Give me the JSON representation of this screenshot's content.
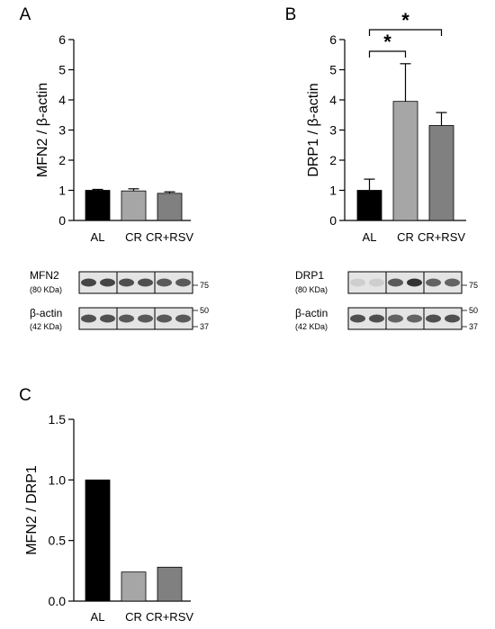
{
  "chart_data": [
    {
      "panel": "A",
      "type": "bar",
      "ylabel": "MFN2 / β-actin",
      "ylim": [
        0,
        6
      ],
      "yticks": [
        "0",
        "1",
        "2",
        "3",
        "4",
        "5",
        "6"
      ],
      "categories": [
        "AL",
        "CR",
        "CR+RSV"
      ],
      "values": [
        1.0,
        0.98,
        0.9
      ],
      "errors": [
        0.03,
        0.07,
        0.05
      ],
      "colors": [
        "#000000",
        "#a6a6a6",
        "#808080"
      ],
      "significance": [],
      "blots": [
        {
          "name": "MFN2",
          "kda": "(80 KDa)",
          "markers": [
            "75"
          ]
        },
        {
          "name": "β-actin",
          "kda": "(42 KDa)",
          "markers": [
            "50",
            "37"
          ]
        }
      ]
    },
    {
      "panel": "B",
      "type": "bar",
      "ylabel": "DRP1 / β-actin",
      "ylim": [
        0,
        6
      ],
      "yticks": [
        "0",
        "1",
        "2",
        "3",
        "4",
        "5",
        "6"
      ],
      "categories": [
        "AL",
        "CR",
        "CR+RSV"
      ],
      "values": [
        1.0,
        3.95,
        3.15
      ],
      "errors": [
        0.37,
        1.25,
        0.43
      ],
      "colors": [
        "#000000",
        "#a6a6a6",
        "#808080"
      ],
      "significance": [
        {
          "from": 0,
          "to": 1,
          "label": "*"
        },
        {
          "from": 0,
          "to": 2,
          "label": "*"
        }
      ],
      "blots": [
        {
          "name": "DRP1",
          "kda": "(80 KDa)",
          "markers": [
            "75"
          ]
        },
        {
          "name": "β-actin",
          "kda": "(42 KDa)",
          "markers": [
            "50",
            "37"
          ]
        }
      ]
    },
    {
      "panel": "C",
      "type": "bar",
      "ylabel": "MFN2 / DRP1",
      "ylim": [
        0,
        1.5
      ],
      "yticks": [
        "0.0",
        "0.5",
        "1.0",
        "1.5"
      ],
      "categories": [
        "AL",
        "CR",
        "CR+RSV"
      ],
      "values": [
        1.0,
        0.24,
        0.28
      ],
      "colors": [
        "#000000",
        "#a6a6a6",
        "#808080"
      ]
    }
  ]
}
